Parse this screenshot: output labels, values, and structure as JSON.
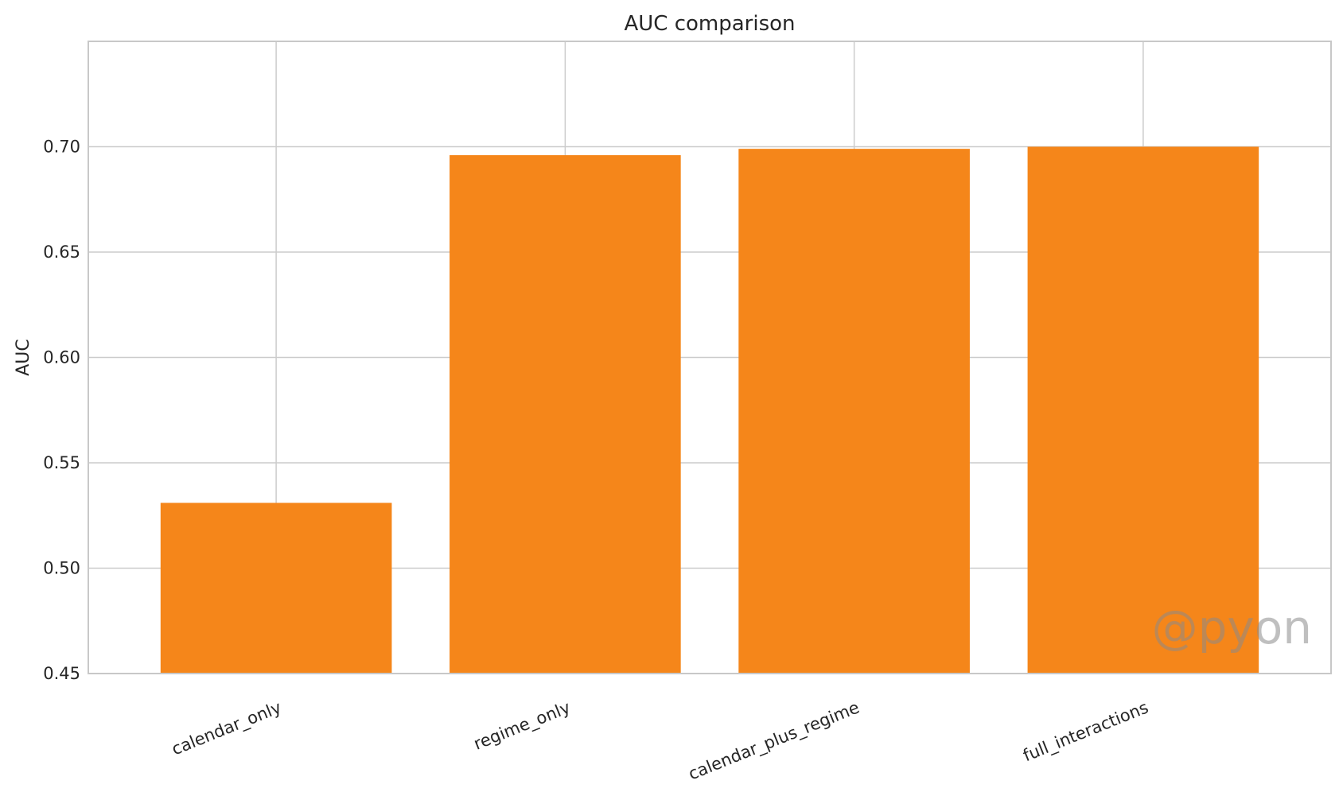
{
  "chart_data": {
    "type": "bar",
    "title": "AUC comparison",
    "xlabel": "",
    "ylabel": "AUC",
    "categories": [
      "calendar_only",
      "regime_only",
      "calendar_plus_regime",
      "full_interactions"
    ],
    "values": [
      0.531,
      0.696,
      0.699,
      0.7
    ],
    "ylim": [
      0.45,
      0.75
    ],
    "yticks": [
      "0.45",
      "0.50",
      "0.55",
      "0.60",
      "0.65",
      "0.70"
    ],
    "grid": true,
    "bar_color": "#f5861a",
    "grid_color": "#cccccc",
    "x_tick_rotation": "30 degrees"
  },
  "watermark": {
    "text": "@pyon"
  }
}
